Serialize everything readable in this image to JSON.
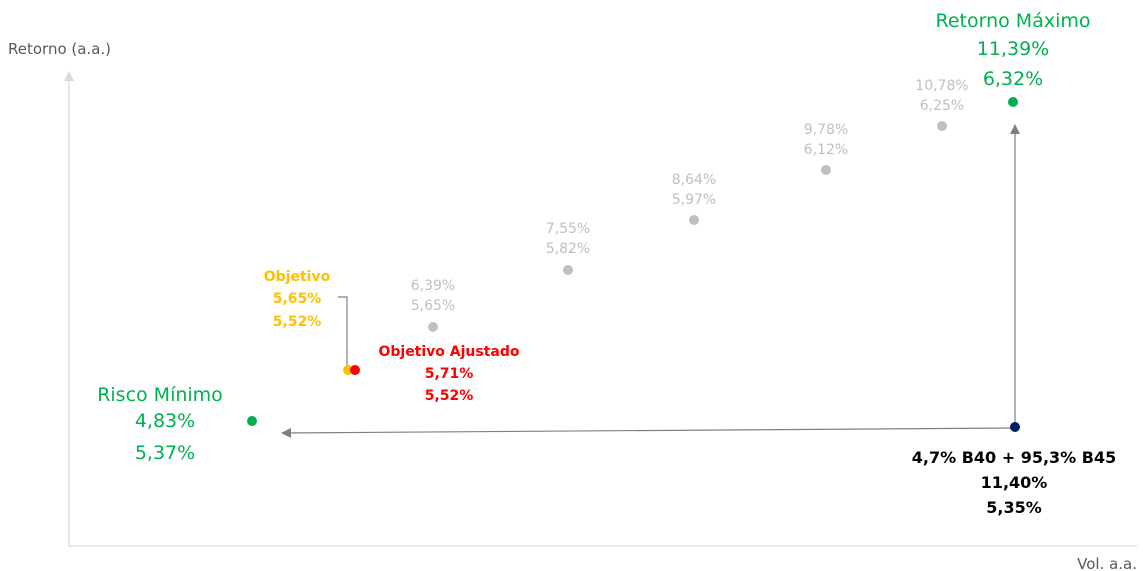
{
  "chart_data": {
    "type": "scatter",
    "xlabel": "Vol. a.a.",
    "ylabel": "Retorno (a.a.)",
    "xlim": [
      3.5,
      12.5
    ],
    "ylim": [
      5.0,
      6.55
    ],
    "colors": {
      "frontier": "#bfbfbf",
      "optimal": "#00b050",
      "objetivo": "#ffc000",
      "objetivo_ajustado": "#ff0000",
      "current": "#002060",
      "axis": "#d9d9d9",
      "arrow": "#7f7f7f"
    },
    "points": [
      {
        "key": "risco_minimo",
        "title": "Risco Mínimo",
        "x": 4.83,
        "y": 5.37,
        "x_label": "4,83%",
        "y_label": "5,37%",
        "color": "#00b050"
      },
      {
        "key": "f1",
        "title": "",
        "x": 6.39,
        "y": 5.65,
        "x_label": "6,39%",
        "y_label": "5,65%",
        "color": "#bfbfbf"
      },
      {
        "key": "f2",
        "title": "",
        "x": 7.55,
        "y": 5.82,
        "x_label": "7,55%",
        "y_label": "5,82%",
        "color": "#bfbfbf"
      },
      {
        "key": "f3",
        "title": "",
        "x": 8.64,
        "y": 5.97,
        "x_label": "8,64%",
        "y_label": "5,97%",
        "color": "#bfbfbf"
      },
      {
        "key": "f4",
        "title": "",
        "x": 9.78,
        "y": 6.12,
        "x_label": "9,78%",
        "y_label": "6,12%",
        "color": "#bfbfbf"
      },
      {
        "key": "f5",
        "title": "",
        "x": 10.78,
        "y": 6.25,
        "x_label": "10,78%",
        "y_label": "6,25%",
        "color": "#bfbfbf"
      },
      {
        "key": "retorno_maximo",
        "title": "Retorno Máximo",
        "x": 11.39,
        "y": 6.32,
        "x_label": "11,39%",
        "y_label": "6,32%",
        "color": "#00b050"
      },
      {
        "key": "objetivo",
        "title": "Objetivo",
        "x": 5.65,
        "y": 5.52,
        "x_label": "5,65%",
        "y_label": "5,52%",
        "color": "#ffc000"
      },
      {
        "key": "objetivo_ajustado",
        "title": "Objetivo Ajustado",
        "x": 5.71,
        "y": 5.52,
        "x_label": "5,71%",
        "y_label": "5,52%",
        "color": "#ff0000"
      },
      {
        "key": "carteira_atual",
        "title": "4,7% B40 + 95,3% B45",
        "x": 11.4,
        "y": 5.35,
        "x_label": "11,40%",
        "y_label": "5,35%",
        "color": "#002060"
      }
    ]
  }
}
